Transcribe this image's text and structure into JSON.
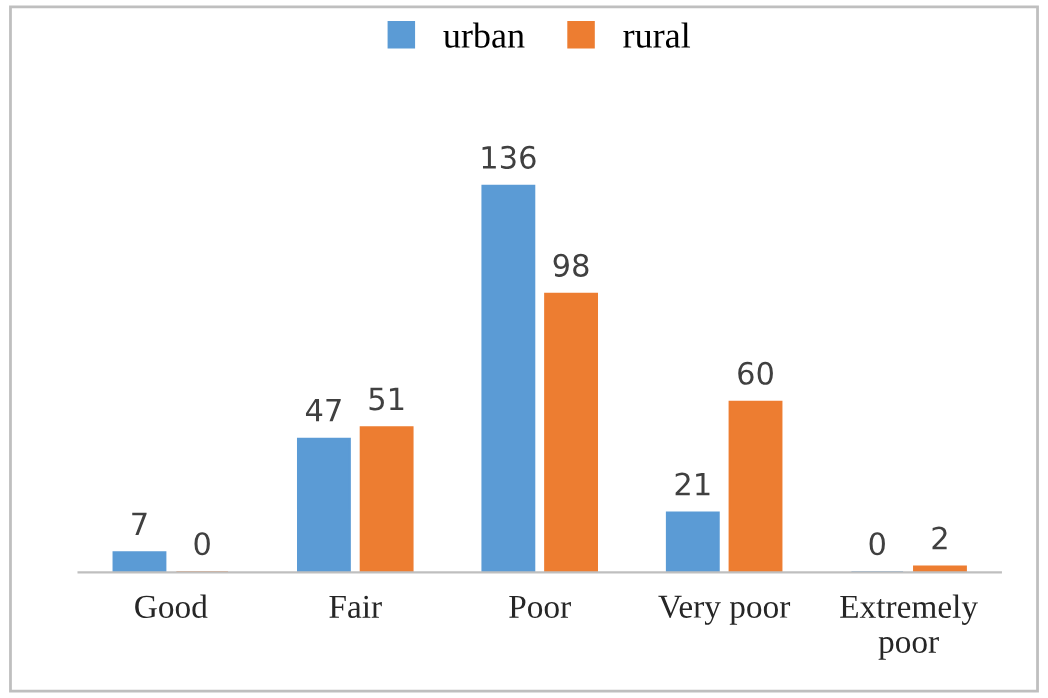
{
  "chart_data": {
    "type": "bar",
    "categories": [
      "Good",
      "Fair",
      "Poor",
      "Very poor",
      "Extremely poor"
    ],
    "series": [
      {
        "name": "urban",
        "color": "#5b9bd5",
        "values": [
          7,
          47,
          136,
          21,
          0
        ]
      },
      {
        "name": "rural",
        "color": "#ed7d31",
        "values": [
          0,
          51,
          98,
          60,
          2
        ]
      }
    ],
    "data_labels": true,
    "legend": "top",
    "grid": false
  }
}
